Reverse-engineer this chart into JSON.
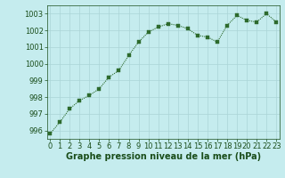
{
  "x": [
    0,
    1,
    2,
    3,
    4,
    5,
    6,
    7,
    8,
    9,
    10,
    11,
    12,
    13,
    14,
    15,
    16,
    17,
    18,
    19,
    20,
    21,
    22,
    23
  ],
  "y": [
    995.8,
    996.5,
    997.3,
    997.8,
    998.1,
    998.5,
    999.2,
    999.6,
    1000.5,
    1001.3,
    1001.9,
    1002.2,
    1002.4,
    1002.3,
    1002.1,
    1001.7,
    1001.6,
    1001.3,
    1002.3,
    1002.9,
    1002.6,
    1002.5,
    1003.0,
    1002.5
  ],
  "line_color": "#2d6a2d",
  "marker_color": "#2d6a2d",
  "bg_color": "#c5ecee",
  "grid_color": "#aad4d6",
  "xlabel": "Graphe pression niveau de la mer (hPa)",
  "xlabel_color": "#1a4d1a",
  "tick_color": "#1a4d1a",
  "ylim": [
    995.5,
    1003.5
  ],
  "yticks": [
    996,
    997,
    998,
    999,
    1000,
    1001,
    1002,
    1003
  ],
  "xticks": [
    0,
    1,
    2,
    3,
    4,
    5,
    6,
    7,
    8,
    9,
    10,
    11,
    12,
    13,
    14,
    15,
    16,
    17,
    18,
    19,
    20,
    21,
    22,
    23
  ],
  "tick_fontsize": 6.0,
  "xlabel_fontsize": 7.0
}
